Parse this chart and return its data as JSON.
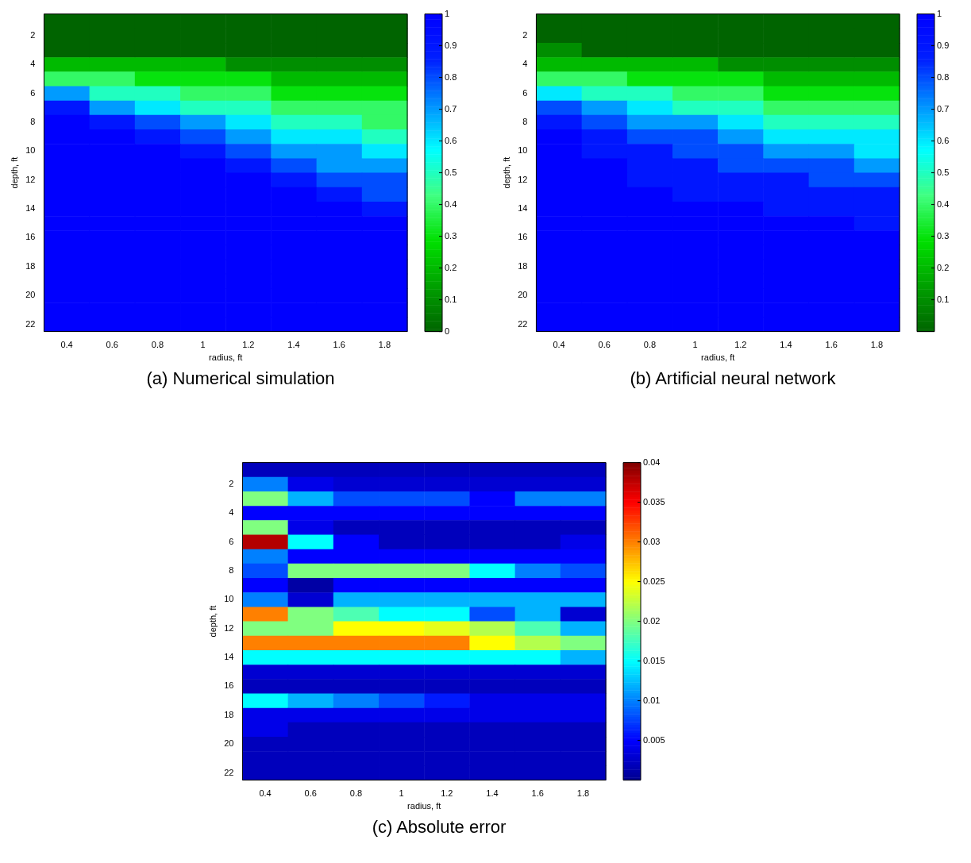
{
  "chart_data": [
    {
      "type": "heatmap",
      "title": "(a)  Numerical  simulation",
      "xlabel": "radius, ft",
      "ylabel": "depth, ft",
      "categories": [
        "0.4",
        "0.6",
        "0.8",
        "1",
        "1.2",
        "1.4",
        "1.6",
        "1.8"
      ],
      "y_categories": [
        null,
        "2",
        null,
        "4",
        null,
        "6",
        null,
        "8",
        null,
        "10",
        null,
        "12",
        null,
        "14",
        null,
        "16",
        null,
        "18",
        null,
        "20",
        null,
        "22"
      ],
      "clim": [
        0,
        1
      ],
      "cticks": [
        0,
        0.1,
        0.2,
        0.3,
        0.4,
        0.5,
        0.6,
        0.7,
        0.8,
        0.9,
        1
      ],
      "colors": [
        "#006400",
        "#00a000",
        "#00e000",
        "#40ff80",
        "#00ffff",
        "#0090ff",
        "#0020ff",
        "#0000ff"
      ],
      "cells": [
        [
          0,
          0,
          0,
          0,
          0,
          0,
          0,
          0
        ],
        [
          0,
          0,
          0,
          0,
          0,
          0,
          0,
          0
        ],
        [
          0,
          0,
          0,
          0,
          0,
          0,
          0,
          0
        ],
        [
          0.2,
          0.2,
          0.2,
          0.2,
          0.1,
          0.1,
          0.1,
          0.1
        ],
        [
          0.4,
          0.4,
          0.3,
          0.3,
          0.3,
          0.2,
          0.2,
          0.2
        ],
        [
          0.7,
          0.5,
          0.5,
          0.4,
          0.4,
          0.3,
          0.3,
          0.3
        ],
        [
          0.9,
          0.7,
          0.6,
          0.5,
          0.5,
          0.4,
          0.4,
          0.4
        ],
        [
          1,
          0.9,
          0.8,
          0.7,
          0.6,
          0.5,
          0.5,
          0.4
        ],
        [
          1,
          1,
          0.9,
          0.8,
          0.7,
          0.6,
          0.6,
          0.5
        ],
        [
          1,
          1,
          1,
          0.9,
          0.8,
          0.7,
          0.7,
          0.6
        ],
        [
          1,
          1,
          1,
          1,
          0.9,
          0.8,
          0.7,
          0.7
        ],
        [
          1,
          1,
          1,
          1,
          1,
          0.9,
          0.8,
          0.8
        ],
        [
          1,
          1,
          1,
          1,
          1,
          1,
          0.9,
          0.8
        ],
        [
          1,
          1,
          1,
          1,
          1,
          1,
          1,
          0.9
        ],
        [
          1,
          1,
          1,
          1,
          1,
          1,
          1,
          1
        ],
        [
          1,
          1,
          1,
          1,
          1,
          1,
          1,
          1
        ],
        [
          1,
          1,
          1,
          1,
          1,
          1,
          1,
          1
        ],
        [
          1,
          1,
          1,
          1,
          1,
          1,
          1,
          1
        ],
        [
          1,
          1,
          1,
          1,
          1,
          1,
          1,
          1
        ],
        [
          1,
          1,
          1,
          1,
          1,
          1,
          1,
          1
        ],
        [
          1,
          1,
          1,
          1,
          1,
          1,
          1,
          1
        ],
        [
          1,
          1,
          1,
          1,
          1,
          1,
          1,
          1
        ]
      ]
    },
    {
      "type": "heatmap",
      "title": "(b) Artificial neural network",
      "xlabel": "radius, ft",
      "ylabel": "depth, ft",
      "categories": [
        "0.4",
        "0.6",
        "0.8",
        "1",
        "1.2",
        "1.4",
        "1.6",
        "1.8"
      ],
      "y_categories": [
        null,
        "2",
        null,
        "4",
        null,
        "6",
        null,
        "8",
        null,
        "10",
        null,
        "12",
        null,
        "14",
        null,
        "16",
        null,
        "18",
        null,
        "20",
        null,
        "22"
      ],
      "clim": [
        0,
        1
      ],
      "cticks": [
        0.1,
        0.2,
        0.3,
        0.4,
        0.5,
        0.6,
        0.7,
        0.8,
        0.9,
        1
      ],
      "colors": [
        "#006400",
        "#00a000",
        "#00e000",
        "#40ff80",
        "#00ffff",
        "#0090ff",
        "#0020ff",
        "#0000ff"
      ],
      "cells": [
        [
          0,
          0,
          0,
          0,
          0,
          0,
          0,
          0
        ],
        [
          0,
          0,
          0,
          0,
          0,
          0,
          0,
          0
        ],
        [
          0.1,
          0,
          0,
          0,
          0,
          0,
          0,
          0
        ],
        [
          0.2,
          0.2,
          0.2,
          0.2,
          0.1,
          0.1,
          0.1,
          0.1
        ],
        [
          0.4,
          0.4,
          0.3,
          0.3,
          0.3,
          0.2,
          0.2,
          0.2
        ],
        [
          0.6,
          0.5,
          0.5,
          0.4,
          0.4,
          0.3,
          0.3,
          0.3
        ],
        [
          0.8,
          0.7,
          0.6,
          0.5,
          0.5,
          0.4,
          0.4,
          0.4
        ],
        [
          0.9,
          0.8,
          0.7,
          0.7,
          0.6,
          0.5,
          0.5,
          0.5
        ],
        [
          1,
          0.9,
          0.8,
          0.8,
          0.7,
          0.6,
          0.6,
          0.6
        ],
        [
          1,
          0.9,
          0.9,
          0.8,
          0.8,
          0.7,
          0.7,
          0.6
        ],
        [
          1,
          1,
          0.9,
          0.9,
          0.8,
          0.8,
          0.8,
          0.7
        ],
        [
          1,
          1,
          0.9,
          0.9,
          0.9,
          0.9,
          0.8,
          0.8
        ],
        [
          1,
          1,
          1,
          0.9,
          0.9,
          0.9,
          0.9,
          0.9
        ],
        [
          1,
          1,
          1,
          1,
          1,
          0.9,
          0.9,
          0.9
        ],
        [
          1,
          1,
          1,
          1,
          1,
          1,
          1,
          0.9
        ],
        [
          1,
          1,
          1,
          1,
          1,
          1,
          1,
          1
        ],
        [
          1,
          1,
          1,
          1,
          1,
          1,
          1,
          1
        ],
        [
          1,
          1,
          1,
          1,
          1,
          1,
          1,
          1
        ],
        [
          1,
          1,
          1,
          1,
          1,
          1,
          1,
          1
        ],
        [
          1,
          1,
          1,
          1,
          1,
          1,
          1,
          1
        ],
        [
          1,
          1,
          1,
          1,
          1,
          1,
          1,
          1
        ],
        [
          1,
          1,
          1,
          1,
          1,
          1,
          1,
          1
        ]
      ]
    },
    {
      "type": "heatmap",
      "title": "(c) Absolute error",
      "xlabel": "radius, ft",
      "ylabel": "depth, ft",
      "categories": [
        "0.4",
        "0.6",
        "0.8",
        "1",
        "1.2",
        "1.4",
        "1.6",
        "1.8"
      ],
      "y_categories": [
        null,
        "2",
        null,
        "4",
        null,
        "6",
        null,
        "8",
        null,
        "10",
        null,
        "12",
        null,
        "14",
        null,
        "16",
        null,
        "18",
        null,
        "20",
        null,
        "22"
      ],
      "clim": [
        0,
        0.04
      ],
      "cticks": [
        0.005,
        0.01,
        0.015,
        0.02,
        0.025,
        0.03,
        0.035,
        0.04
      ],
      "colors": [
        "#00008f",
        "#0000ff",
        "#0080ff",
        "#00ffff",
        "#80ff80",
        "#ffff00",
        "#ff8000",
        "#ff0000",
        "#800000"
      ],
      "cells": [
        [
          0.002,
          0.002,
          0.002,
          0.002,
          0.002,
          0.002,
          0.002,
          0.002
        ],
        [
          0.01,
          0.004,
          0.003,
          0.003,
          0.003,
          0.003,
          0.003,
          0.003
        ],
        [
          0.02,
          0.012,
          0.008,
          0.008,
          0.008,
          0.005,
          0.01,
          0.01
        ],
        [
          0.005,
          0.005,
          0.005,
          0.005,
          0.005,
          0.005,
          0.005,
          0.005
        ],
        [
          0.02,
          0.004,
          0.002,
          0.002,
          0.002,
          0.002,
          0.002,
          0.002
        ],
        [
          0.038,
          0.015,
          0.005,
          0.002,
          0.002,
          0.002,
          0.002,
          0.004
        ],
        [
          0.01,
          0.005,
          0.005,
          0.005,
          0.005,
          0.005,
          0.005,
          0.005
        ],
        [
          0.008,
          0.02,
          0.02,
          0.02,
          0.02,
          0.015,
          0.01,
          0.008
        ],
        [
          0.005,
          0.001,
          0.005,
          0.005,
          0.005,
          0.005,
          0.005,
          0.005
        ],
        [
          0.01,
          0.003,
          0.012,
          0.012,
          0.012,
          0.012,
          0.012,
          0.012
        ],
        [
          0.03,
          0.02,
          0.018,
          0.015,
          0.015,
          0.008,
          0.012,
          0.003
        ],
        [
          0.02,
          0.02,
          0.025,
          0.025,
          0.024,
          0.022,
          0.018,
          0.012
        ],
        [
          0.03,
          0.03,
          0.03,
          0.03,
          0.03,
          0.025,
          0.022,
          0.02
        ],
        [
          0.015,
          0.015,
          0.015,
          0.015,
          0.015,
          0.015,
          0.015,
          0.012
        ],
        [
          0.003,
          0.003,
          0.003,
          0.003,
          0.003,
          0.003,
          0.003,
          0.003
        ],
        [
          0.002,
          0.002,
          0.002,
          0.002,
          0.002,
          0.002,
          0.002,
          0.002
        ],
        [
          0.015,
          0.012,
          0.01,
          0.008,
          0.006,
          0.004,
          0.004,
          0.004
        ],
        [
          0.004,
          0.004,
          0.004,
          0.004,
          0.004,
          0.004,
          0.004,
          0.004
        ],
        [
          0.004,
          0.002,
          0.002,
          0.002,
          0.002,
          0.002,
          0.002,
          0.002
        ],
        [
          0.002,
          0.002,
          0.002,
          0.002,
          0.002,
          0.002,
          0.002,
          0.002
        ],
        [
          0.002,
          0.002,
          0.002,
          0.002,
          0.002,
          0.002,
          0.002,
          0.002
        ],
        [
          0.002,
          0.002,
          0.002,
          0.002,
          0.002,
          0.002,
          0.002,
          0.002
        ]
      ]
    }
  ]
}
